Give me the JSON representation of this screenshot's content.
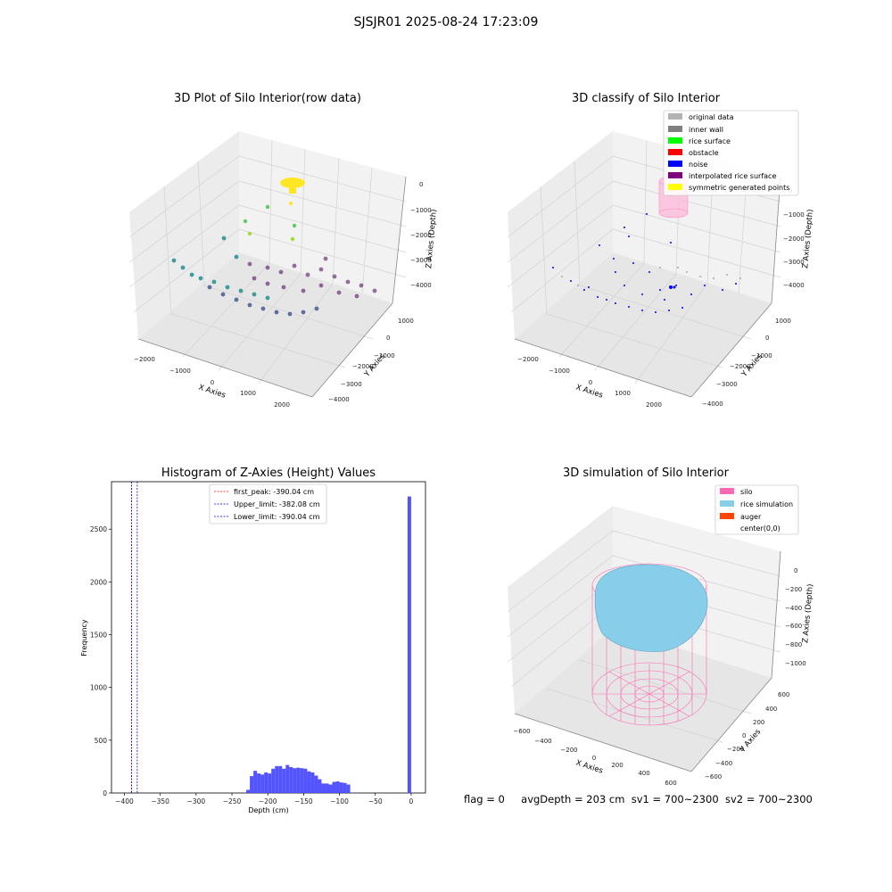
{
  "figure_title": "SJSJR01 2025-08-24 17:23:09",
  "status": {
    "flag": "flag = 0",
    "avg_depth": "avgDepth = 203 cm",
    "sv1": "sv1 = 700~2300",
    "sv2": "sv2 = 700~2300"
  },
  "chart_data": [
    {
      "type": "scatter",
      "projection": "3d",
      "title": "3D Plot of Silo Interior(row data)",
      "xlabel": "X Axies",
      "ylabel": "Y Axies",
      "zlabel": "Z Axies (Depth)",
      "x_ticks": [
        "−2000",
        "−1000",
        "0",
        "1000",
        "2000"
      ],
      "y_ticks": [
        "1000",
        "0",
        "−1000",
        "−2000",
        "−3000",
        "−4000"
      ],
      "z_ticks": [
        "0",
        "−1000",
        "−2000",
        "−3000",
        "−4000"
      ],
      "colormap": "viridis",
      "grid": true
    },
    {
      "type": "scatter",
      "projection": "3d",
      "title": "3D classify of Silo Interior",
      "xlabel": "X Axies",
      "ylabel": "Y Axies",
      "zlabel": "Z Axies (Depth)",
      "x_ticks": [
        "−2000",
        "−1000",
        "0",
        "1000",
        "2000"
      ],
      "y_ticks": [
        "1000",
        "0",
        "−1000",
        "−2000",
        "−3000",
        "−4000"
      ],
      "z_ticks": [
        "0",
        "−1000",
        "−2000",
        "−3000",
        "−4000"
      ],
      "legend_position": "top-right",
      "legend": [
        {
          "label": "original data",
          "color": "#b3b3b3"
        },
        {
          "label": "inner wall",
          "color": "#808080"
        },
        {
          "label": "rice surface",
          "color": "#00ff00"
        },
        {
          "label": "obstacle",
          "color": "#ff0000"
        },
        {
          "label": "noise",
          "color": "#0000ff"
        },
        {
          "label": "interpolated rice surface",
          "color": "#800080"
        },
        {
          "label": "symmetric generated points",
          "color": "#ffff00"
        }
      ],
      "grid": true
    },
    {
      "type": "bar",
      "title": "Histogram of Z-Axies (Height) Values",
      "xlabel": "Depth (cm)",
      "ylabel": "Frequency",
      "xlim": [
        -418,
        20
      ],
      "ylim": [
        0,
        2950
      ],
      "x_ticks": [
        "−400",
        "−350",
        "−300",
        "−250",
        "−200",
        "−150",
        "−100",
        "−50",
        "0"
      ],
      "y_ticks": [
        "0",
        "500",
        "1000",
        "1500",
        "2000",
        "2500"
      ],
      "bar_color": "#4b4bff",
      "bin_width": 5,
      "bins": [
        {
          "x": -230,
          "value": 30
        },
        {
          "x": -225,
          "value": 160
        },
        {
          "x": -220,
          "value": 210
        },
        {
          "x": -215,
          "value": 185
        },
        {
          "x": -210,
          "value": 175
        },
        {
          "x": -205,
          "value": 195
        },
        {
          "x": -200,
          "value": 185
        },
        {
          "x": -195,
          "value": 230
        },
        {
          "x": -190,
          "value": 255
        },
        {
          "x": -185,
          "value": 255
        },
        {
          "x": -180,
          "value": 230
        },
        {
          "x": -175,
          "value": 265
        },
        {
          "x": -170,
          "value": 245
        },
        {
          "x": -165,
          "value": 235
        },
        {
          "x": -160,
          "value": 240
        },
        {
          "x": -155,
          "value": 235
        },
        {
          "x": -150,
          "value": 230
        },
        {
          "x": -145,
          "value": 205
        },
        {
          "x": -140,
          "value": 195
        },
        {
          "x": -135,
          "value": 165
        },
        {
          "x": -130,
          "value": 130
        },
        {
          "x": -125,
          "value": 90
        },
        {
          "x": -120,
          "value": 90
        },
        {
          "x": -115,
          "value": 80
        },
        {
          "x": -110,
          "value": 105
        },
        {
          "x": -105,
          "value": 110
        },
        {
          "x": -100,
          "value": 100
        },
        {
          "x": -95,
          "value": 95
        },
        {
          "x": -90,
          "value": 80
        },
        {
          "x": -5,
          "value": 2810
        }
      ],
      "reference_lines": [
        {
          "label": "first_peak: -390.04 cm",
          "x": -390.04,
          "color": "#ff0000"
        },
        {
          "label": "Upper_limit: -382.08 cm",
          "x": -382.08,
          "color": "#0000ff"
        },
        {
          "label": "Lower_limit: -390.04 cm",
          "x": -390.04,
          "color": "#0000ff"
        }
      ],
      "legend_position": "top-center",
      "grid": false
    },
    {
      "type": "surface",
      "projection": "3d",
      "title": "3D simulation of Silo Interior",
      "xlabel": "X Axies",
      "ylabel": "Y Axies",
      "zlabel": "Z Axies (Depth)",
      "x_ticks": [
        "−600",
        "−400",
        "−200",
        "0",
        "200",
        "400",
        "600"
      ],
      "y_ticks": [
        "600",
        "400",
        "200",
        "0",
        "−200",
        "−400",
        "−600"
      ],
      "z_ticks": [
        "0",
        "−200",
        "−400",
        "−600",
        "−800",
        "−1000"
      ],
      "legend_position": "top-right",
      "legend": [
        {
          "label": "silo",
          "color": "#ff69b4"
        },
        {
          "label": "rice simulation",
          "color": "#87ceeb"
        },
        {
          "label": "auger",
          "color": "#ff4500"
        },
        {
          "label": "center(0,0)",
          "color": ""
        }
      ],
      "grid": true
    }
  ]
}
